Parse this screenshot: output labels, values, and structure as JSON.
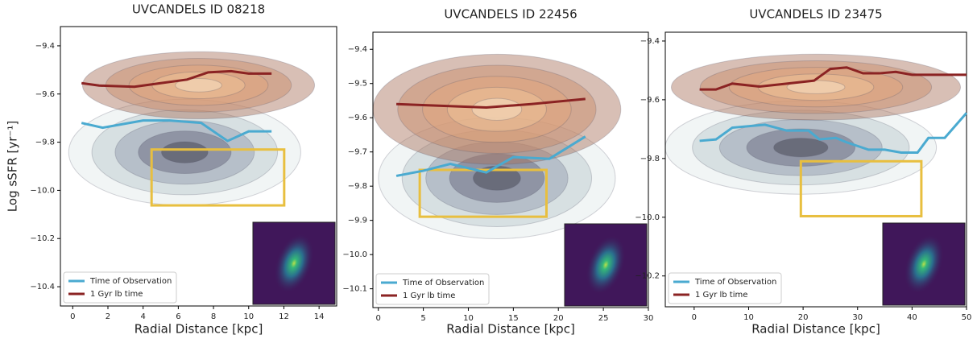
{
  "chart_data": [
    {
      "type": "line",
      "title": "UVCANDELS ID 08218",
      "xlabel": "Radial Distance [kpc]",
      "ylabel": "Log sSFR [yr⁻¹]",
      "xlim": [
        -0.7,
        15
      ],
      "ylim": [
        -10.48,
        -9.32
      ],
      "xticks": [
        0,
        2,
        4,
        6,
        8,
        10,
        12,
        14
      ],
      "yticks": [
        {
          "value": -9.4,
          "label": "−9.4"
        },
        {
          "value": -9.6,
          "label": "−9.6"
        },
        {
          "value": -9.8,
          "label": "−9.8"
        },
        {
          "value": -10.0,
          "label": "−10.0"
        },
        {
          "value": -10.2,
          "label": "−10.2"
        },
        {
          "value": -10.4,
          "label": "−10.4"
        }
      ],
      "legend": "lower left",
      "series": [
        {
          "name": "Time of Observation",
          "color": "#4aaad0",
          "x": [
            0.5,
            1.7,
            4,
            5.5,
            7.3,
            8.8,
            10,
            11.3
          ],
          "values": [
            -9.72,
            -9.74,
            -9.71,
            -9.71,
            -9.72,
            -9.795,
            -9.755,
            -9.755
          ]
        },
        {
          "name": "1 Gyr lb time",
          "color": "#8b2323",
          "x": [
            0.5,
            1.5,
            3.5,
            5,
            6.5,
            7.7,
            9,
            10,
            11.3
          ],
          "values": [
            -9.555,
            -9.565,
            -9.57,
            -9.555,
            -9.54,
            -9.51,
            -9.505,
            -9.515,
            -9.515
          ]
        }
      ]
    },
    {
      "type": "line",
      "title": "UVCANDELS ID 22456",
      "xlabel": "Radial Distance [kpc]",
      "xlim": [
        -0.6,
        30
      ],
      "ylim": [
        -10.155,
        -9.35
      ],
      "xticks": [
        0,
        5,
        10,
        15,
        20,
        25,
        30
      ],
      "yticks": [
        {
          "value": -9.4,
          "label": "−9.4"
        },
        {
          "value": -9.5,
          "label": "−9.5"
        },
        {
          "value": -9.6,
          "label": "−9.6"
        },
        {
          "value": -9.7,
          "label": "−9.7"
        },
        {
          "value": -9.8,
          "label": "−9.8"
        },
        {
          "value": -9.9,
          "label": "−9.9"
        },
        {
          "value": -10.0,
          "label": "−10.0"
        },
        {
          "value": -10.1,
          "label": "−10.1"
        }
      ],
      "legend": "lower left",
      "series": [
        {
          "name": "Time of Observation",
          "color": "#4aaad0",
          "x": [
            2,
            5,
            8,
            12,
            15,
            19,
            23
          ],
          "values": [
            -9.77,
            -9.755,
            -9.735,
            -9.76,
            -9.715,
            -9.72,
            -9.655
          ]
        },
        {
          "name": "1 Gyr lb time",
          "color": "#8b2323",
          "x": [
            2,
            7,
            12,
            17,
            23
          ],
          "values": [
            -9.56,
            -9.565,
            -9.57,
            -9.56,
            -9.545
          ]
        }
      ]
    },
    {
      "type": "line",
      "title": "UVCANDELS ID 23475",
      "xlabel": "Radial Distance [kpc]",
      "xlim": [
        -5.3,
        50
      ],
      "ylim": [
        -10.305,
        -9.37
      ],
      "xticks": [
        0,
        10,
        20,
        30,
        40,
        50
      ],
      "yticks": [
        {
          "value": -9.4,
          "label": "−9.4"
        },
        {
          "value": -9.6,
          "label": "−9.6"
        },
        {
          "value": -9.8,
          "label": "−9.8"
        },
        {
          "value": -10.0,
          "label": "−10.0"
        },
        {
          "value": -10.2,
          "label": "−10.2"
        }
      ],
      "legend": "lower left",
      "series": [
        {
          "name": "Time of Observation",
          "color": "#4aaad0",
          "x": [
            1,
            4,
            7,
            13,
            17,
            21,
            23,
            26,
            28,
            32,
            35,
            38,
            41,
            43,
            46,
            50
          ],
          "values": [
            -9.74,
            -9.735,
            -9.695,
            -9.685,
            -9.705,
            -9.705,
            -9.735,
            -9.73,
            -9.745,
            -9.77,
            -9.77,
            -9.78,
            -9.78,
            -9.73,
            -9.73,
            -9.645
          ]
        },
        {
          "name": "1 Gyr lb time",
          "color": "#8b2323",
          "x": [
            1,
            4,
            7,
            12,
            17,
            22,
            25,
            28,
            31,
            34,
            37,
            40,
            45,
            50
          ],
          "values": [
            -9.565,
            -9.565,
            -9.545,
            -9.555,
            -9.545,
            -9.535,
            -9.495,
            -9.49,
            -9.51,
            -9.51,
            -9.505,
            -9.515,
            -9.515,
            -9.515
          ]
        }
      ]
    }
  ]
}
